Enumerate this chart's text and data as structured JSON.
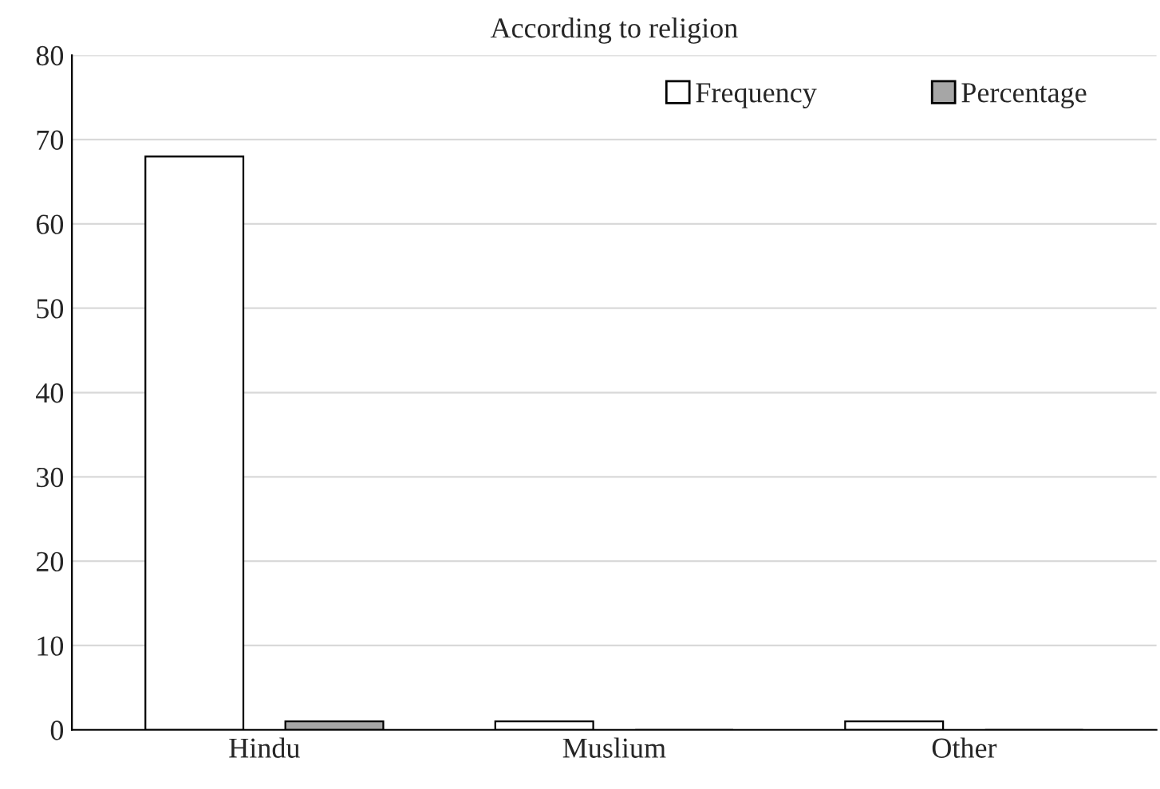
{
  "chart_data": {
    "type": "bar",
    "title": "According to religion",
    "categories": [
      "Hindu",
      "Muslium",
      "Other"
    ],
    "series": [
      {
        "name": "Frequency",
        "color": "#ffffff",
        "values": [
          68,
          1,
          1
        ]
      },
      {
        "name": "Percentage",
        "color": "#a6a6a6",
        "values": [
          1,
          0,
          0
        ]
      }
    ],
    "ylim": [
      0,
      80
    ],
    "yticks": [
      0,
      10,
      20,
      30,
      40,
      50,
      60,
      70,
      80
    ],
    "grid": "y",
    "legend": "top right"
  }
}
